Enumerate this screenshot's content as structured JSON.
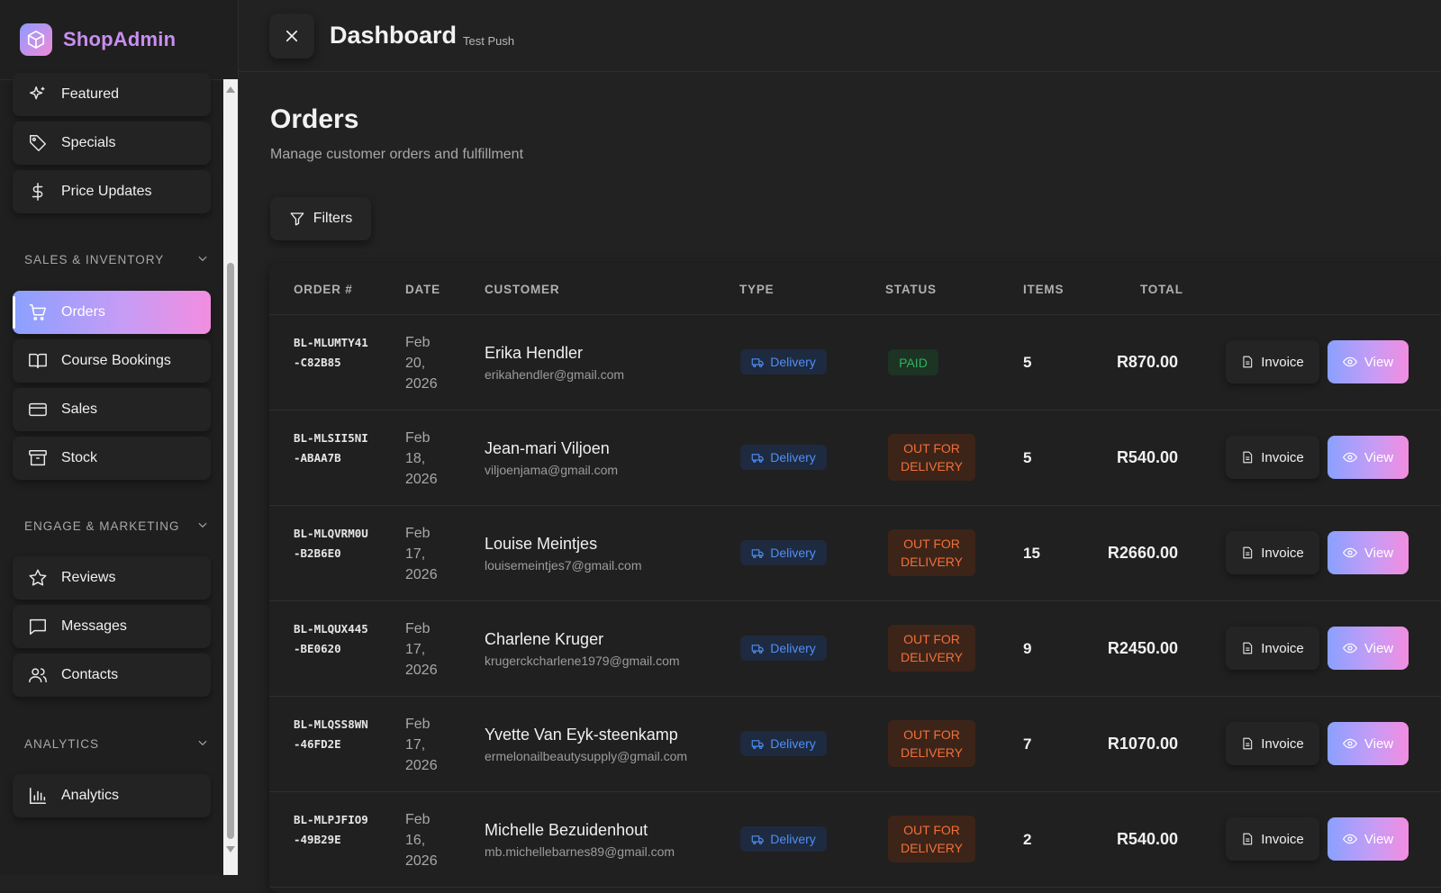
{
  "app": {
    "brand": "ShopAdmin"
  },
  "sidebar": {
    "items_top": [
      {
        "label": "Featured",
        "icon": "sparkles-icon"
      },
      {
        "label": "Specials",
        "icon": "tag-icon"
      },
      {
        "label": "Price Updates",
        "icon": "dollar-icon"
      }
    ],
    "section_sales": "SALES & INVENTORY",
    "items_sales": [
      {
        "label": "Orders",
        "icon": "cart-icon",
        "active": true
      },
      {
        "label": "Course Bookings",
        "icon": "book-icon"
      },
      {
        "label": "Sales",
        "icon": "card-icon"
      },
      {
        "label": "Stock",
        "icon": "archive-icon"
      }
    ],
    "section_marketing": "ENGAGE & MARKETING",
    "items_marketing": [
      {
        "label": "Reviews",
        "icon": "star-icon"
      },
      {
        "label": "Messages",
        "icon": "message-icon"
      },
      {
        "label": "Contacts",
        "icon": "users-icon"
      }
    ],
    "section_analytics": "ANALYTICS",
    "items_analytics": [
      {
        "label": "Analytics",
        "icon": "bar-chart-icon"
      }
    ]
  },
  "topbar": {
    "title": "Dashboard",
    "subtitle": "Test Push"
  },
  "page": {
    "title": "Orders",
    "subtitle": "Manage customer orders and fulfillment",
    "filters_label": "Filters"
  },
  "table": {
    "headers": {
      "order": "ORDER #",
      "date": "DATE",
      "customer": "CUSTOMER",
      "type": "TYPE",
      "status": "STATUS",
      "items": "ITEMS",
      "total": "TOTAL"
    },
    "invoice_label": "Invoice",
    "view_label": "View",
    "rows": [
      {
        "order": "BL-MLUMTY41-C82B85",
        "date_line1": "Feb",
        "date_line2": "20,",
        "date_line3": "2026",
        "name": "Erika Hendler",
        "email": "erikahendler@gmail.com",
        "type": "Delivery",
        "status": "PAID",
        "items": "5",
        "total": "R870.00"
      },
      {
        "order": "BL-MLSII5NI-ABAA7B",
        "date_line1": "Feb",
        "date_line2": "18,",
        "date_line3": "2026",
        "name": "Jean-mari Viljoen",
        "email": "viljoenjama@gmail.com",
        "type": "Delivery",
        "status": "OUT FOR DELIVERY",
        "items": "5",
        "total": "R540.00"
      },
      {
        "order": "BL-MLQVRM0U-B2B6E0",
        "date_line1": "Feb",
        "date_line2": "17,",
        "date_line3": "2026",
        "name": "Louise Meintjes",
        "email": "louisemeintjes7@gmail.com",
        "type": "Delivery",
        "status": "OUT FOR DELIVERY",
        "items": "15",
        "total": "R2660.00"
      },
      {
        "order": "BL-MLQUX445-BE0620",
        "date_line1": "Feb",
        "date_line2": "17,",
        "date_line3": "2026",
        "name": "Charlene Kruger",
        "email": "krugerckcharlene1979@gmail.com",
        "type": "Delivery",
        "status": "OUT FOR DELIVERY",
        "items": "9",
        "total": "R2450.00"
      },
      {
        "order": "BL-MLQSS8WN-46FD2E",
        "date_line1": "Feb",
        "date_line2": "17,",
        "date_line3": "2026",
        "name": "Yvette Van Eyk-steenkamp",
        "email": "ermelonailbeautysupply@gmail.com",
        "type": "Delivery",
        "status": "OUT FOR DELIVERY",
        "items": "7",
        "total": "R1070.00"
      },
      {
        "order": "BL-MLPJFIO9-49B29E",
        "date_line1": "Feb",
        "date_line2": "16,",
        "date_line3": "2026",
        "name": "Michelle Bezuidenhout",
        "email": "mb.michellebarnes89@gmail.com",
        "type": "Delivery",
        "status": "OUT FOR DELIVERY",
        "items": "2",
        "total": "R540.00"
      }
    ]
  },
  "colors": {
    "accent_start": "#8aa0ff",
    "accent_end": "#f28de0",
    "paid": "#2fb35d",
    "out_for_delivery": "#f07038",
    "delivery": "#4f8ff7"
  }
}
